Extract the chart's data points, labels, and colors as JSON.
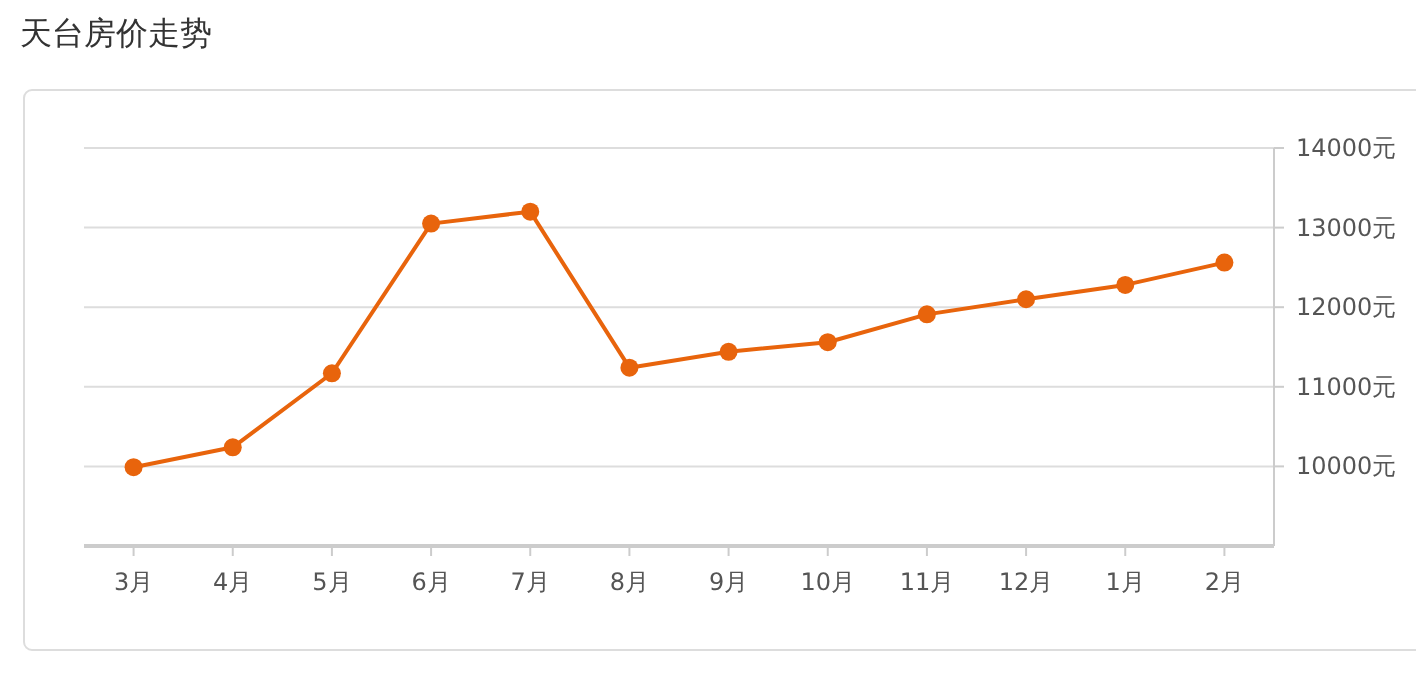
{
  "chart_data": {
    "type": "line",
    "title": "天台房价走势",
    "categories": [
      "3月",
      "4月",
      "5月",
      "6月",
      "7月",
      "8月",
      "9月",
      "10月",
      "11月",
      "12月",
      "1月",
      "2月"
    ],
    "series": [
      {
        "color": "#e8640c",
        "values": [
          9990,
          10240,
          11170,
          13050,
          13200,
          11240,
          11440,
          11560,
          11910,
          12100,
          12280,
          12560
        ]
      }
    ],
    "ylim": [
      9000,
      14000
    ],
    "yticks": [
      {
        "value": 10000,
        "label": "10000元"
      },
      {
        "value": 11000,
        "label": "11000元"
      },
      {
        "value": 12000,
        "label": "12000元"
      },
      {
        "value": 13000,
        "label": "13000元"
      },
      {
        "value": 14000,
        "label": "14000元"
      }
    ],
    "grid": "y",
    "marker": "circle",
    "line_style": "solid"
  }
}
